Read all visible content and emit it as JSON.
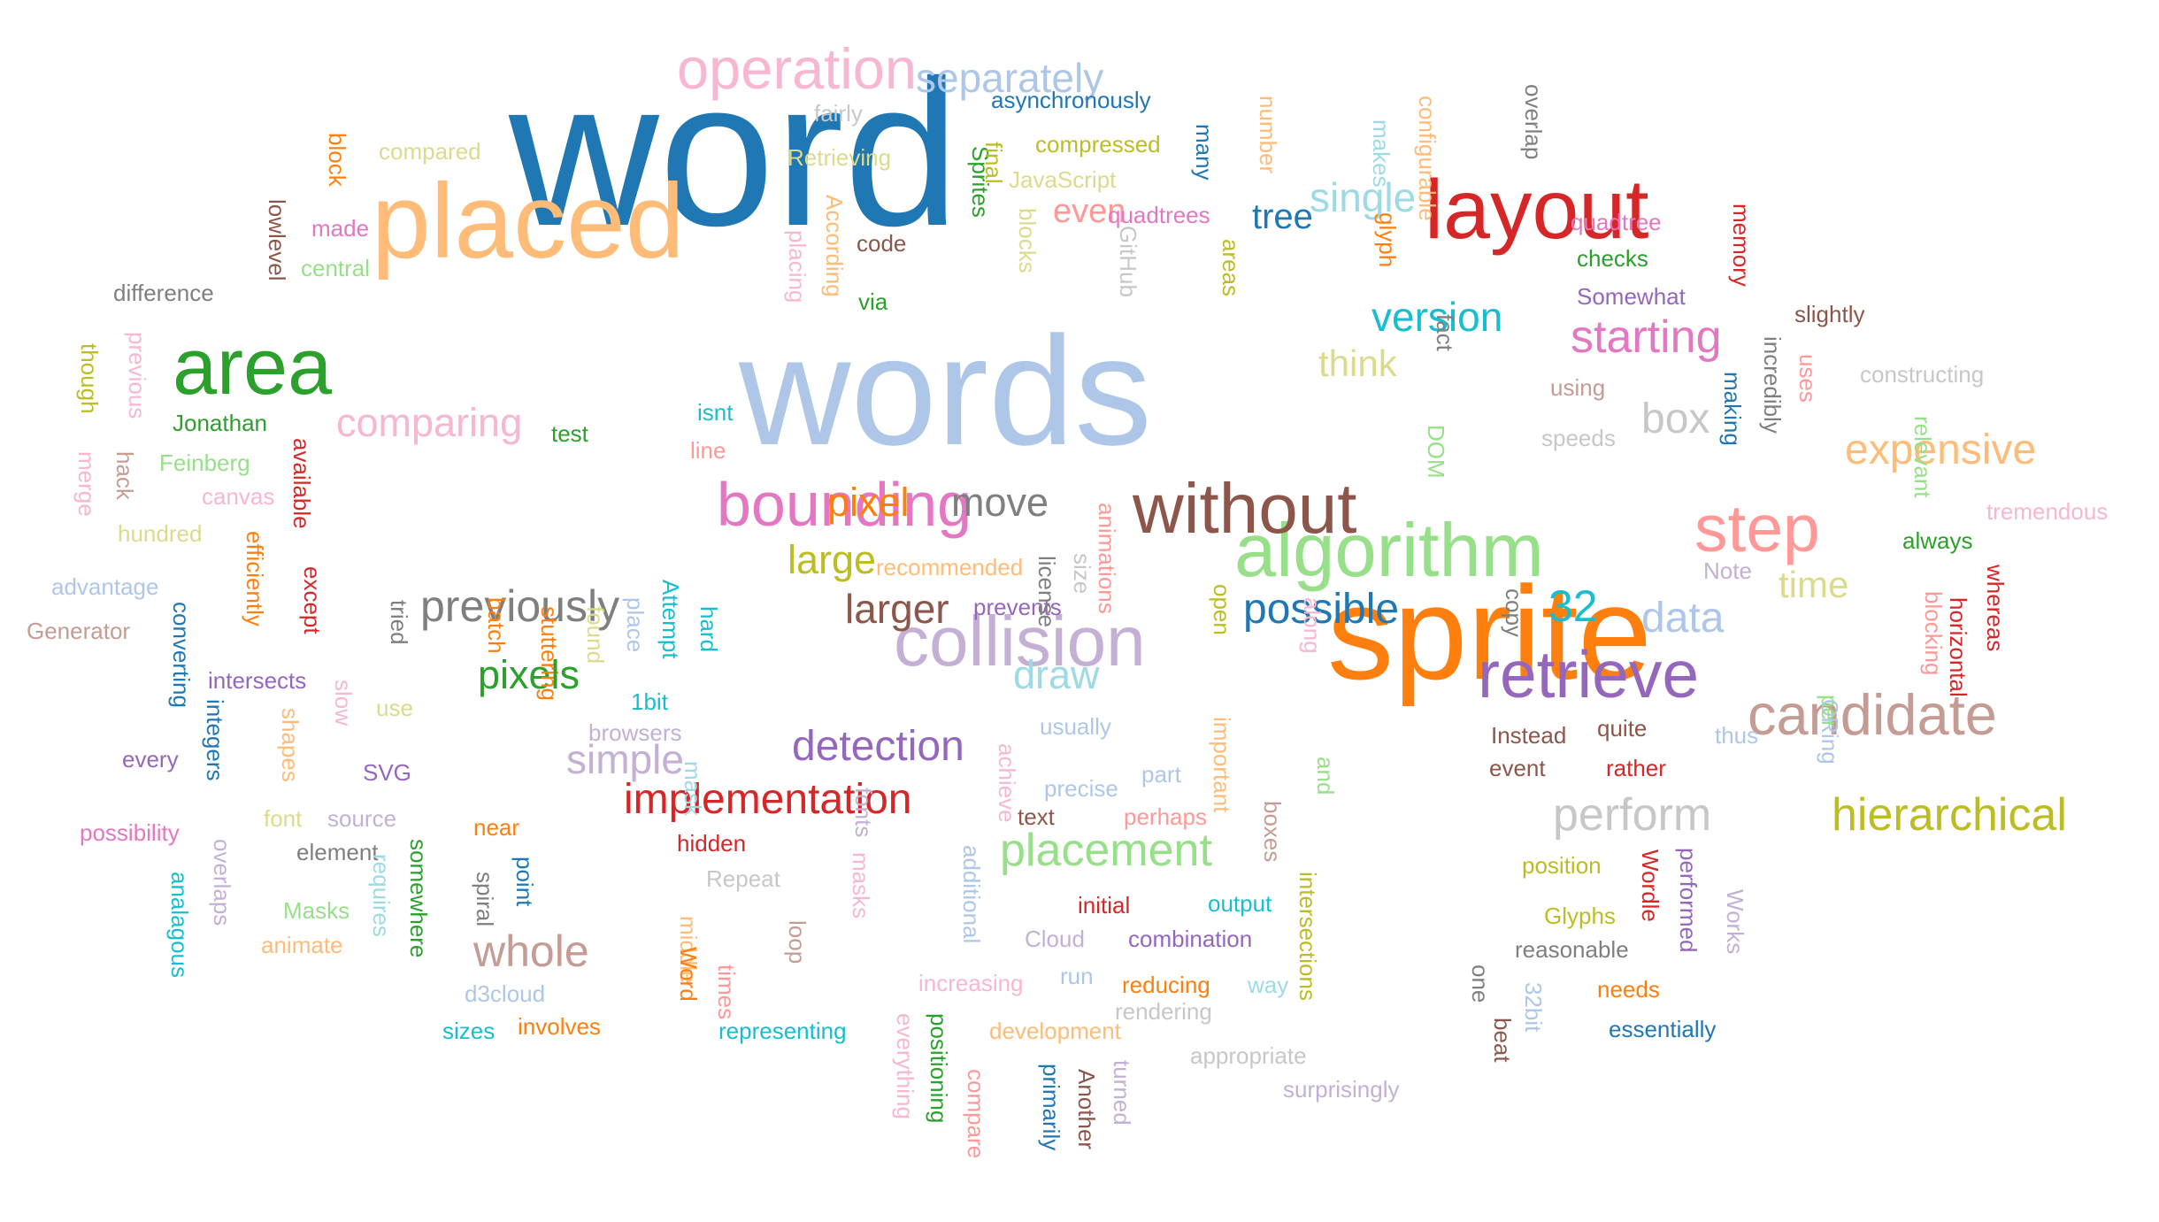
{
  "words": [
    {
      "text": "word",
      "color": "#1f77b4"
    },
    {
      "text": "words",
      "color": "#aec7e8"
    },
    {
      "text": "sprite",
      "color": "#ff7f0e"
    },
    {
      "text": "placed",
      "color": "#ffbb78"
    },
    {
      "text": "algorithm",
      "color": "#98df8a"
    },
    {
      "text": "area",
      "color": "#2ca02c"
    },
    {
      "text": "layout",
      "color": "#d62728"
    },
    {
      "text": "retrieve",
      "color": "#9467bd"
    },
    {
      "text": "candidate",
      "color": "#c49c94"
    },
    {
      "text": "step",
      "color": "#ff9896"
    },
    {
      "text": "without",
      "color": "#8c564b"
    },
    {
      "text": "operation",
      "color": "#f7b6d2"
    },
    {
      "text": "bounding",
      "color": "#e377c2"
    },
    {
      "text": "collision",
      "color": "#c5b0d5"
    },
    {
      "text": "separately",
      "color": "#aec7e8"
    },
    {
      "text": "implementation",
      "color": "#d62728"
    },
    {
      "text": "previously",
      "color": "#7f7f7f"
    },
    {
      "text": "comparing",
      "color": "#f7b6d2"
    },
    {
      "text": "hierarchical",
      "color": "#bcbd22"
    },
    {
      "text": "expensive",
      "color": "#ffbb78"
    },
    {
      "text": "placement",
      "color": "#98df8a"
    },
    {
      "text": "perform",
      "color": "#c7c7c7"
    },
    {
      "text": "starting",
      "color": "#e377c2"
    },
    {
      "text": "detection",
      "color": "#9467bd"
    },
    {
      "text": "possible",
      "color": "#1f77b4"
    },
    {
      "text": "larger",
      "color": "#8c564b"
    },
    {
      "text": "version",
      "color": "#17becf"
    },
    {
      "text": "single",
      "color": "#9edae5"
    },
    {
      "text": "simple",
      "color": "#c5b0d5"
    },
    {
      "text": "whole",
      "color": "#c49c94"
    },
    {
      "text": "pixels",
      "color": "#2ca02c"
    },
    {
      "text": "data",
      "color": "#aec7e8"
    },
    {
      "text": "move",
      "color": "#7f7f7f"
    },
    {
      "text": "pixel",
      "color": "#ff7f0e"
    },
    {
      "text": "think",
      "color": "#dbdb8d"
    },
    {
      "text": "time",
      "color": "#dbdb8d"
    },
    {
      "text": "draw",
      "color": "#9edae5"
    },
    {
      "text": "large",
      "color": "#bcbd22"
    },
    {
      "text": "box",
      "color": "#c7c7c7"
    },
    {
      "text": "tree",
      "color": "#1f77b4"
    },
    {
      "text": "even",
      "color": "#ff9896"
    },
    {
      "text": "32",
      "color": "#17becf"
    },
    {
      "text": "asynchronously",
      "color": "#1f77b4"
    },
    {
      "text": "fairly",
      "color": "#c7c7c7"
    },
    {
      "text": "compared",
      "color": "#dbdb8d"
    },
    {
      "text": "Retrieving",
      "color": "#dbdb8d"
    },
    {
      "text": "compressed",
      "color": "#bcbd22"
    },
    {
      "text": "JavaScript",
      "color": "#dbdb8d"
    },
    {
      "text": "quadtrees",
      "color": "#e377c2"
    },
    {
      "text": "code",
      "color": "#8c564b"
    },
    {
      "text": "via",
      "color": "#2ca02c"
    },
    {
      "text": "made",
      "color": "#e377c2"
    },
    {
      "text": "central",
      "color": "#98df8a"
    },
    {
      "text": "difference",
      "color": "#7f7f7f"
    },
    {
      "text": "Jonathan",
      "color": "#2ca02c"
    },
    {
      "text": "Feinberg",
      "color": "#98df8a"
    },
    {
      "text": "canvas",
      "color": "#f7b6d2"
    },
    {
      "text": "hundred",
      "color": "#dbdb8d"
    },
    {
      "text": "advantage",
      "color": "#aec7e8"
    },
    {
      "text": "Generator",
      "color": "#c49c94"
    },
    {
      "text": "intersects",
      "color": "#9467bd"
    },
    {
      "text": "every",
      "color": "#9467bd"
    },
    {
      "text": "SVG",
      "color": "#9467bd"
    },
    {
      "text": "font",
      "color": "#dbdb8d"
    },
    {
      "text": "source",
      "color": "#c5b0d5"
    },
    {
      "text": "possibility",
      "color": "#e377c2"
    },
    {
      "text": "element",
      "color": "#7f7f7f"
    },
    {
      "text": "near",
      "color": "#ff7f0e"
    },
    {
      "text": "Masks",
      "color": "#98df8a"
    },
    {
      "text": "animate",
      "color": "#ffbb78"
    },
    {
      "text": "d3cloud",
      "color": "#aec7e8"
    },
    {
      "text": "sizes",
      "color": "#17becf"
    },
    {
      "text": "involves",
      "color": "#ff7f0e"
    },
    {
      "text": "test",
      "color": "#2ca02c"
    },
    {
      "text": "isnt",
      "color": "#17becf"
    },
    {
      "text": "line",
      "color": "#ff9896"
    },
    {
      "text": "recommended",
      "color": "#ffbb78"
    },
    {
      "text": "prevents",
      "color": "#9467bd"
    },
    {
      "text": "usually",
      "color": "#aec7e8"
    },
    {
      "text": "precise",
      "color": "#aec7e8"
    },
    {
      "text": "part",
      "color": "#aec7e8"
    },
    {
      "text": "text",
      "color": "#8c564b"
    },
    {
      "text": "perhaps",
      "color": "#ff9896"
    },
    {
      "text": "1bit",
      "color": "#17becf"
    },
    {
      "text": "browsers",
      "color": "#c5b0d5"
    },
    {
      "text": "use",
      "color": "#dbdb8d"
    },
    {
      "text": "hidden",
      "color": "#d62728"
    },
    {
      "text": "Repeat",
      "color": "#c7c7c7"
    },
    {
      "text": "initial",
      "color": "#d62728"
    },
    {
      "text": "output",
      "color": "#17becf"
    },
    {
      "text": "Cloud",
      "color": "#c5b0d5"
    },
    {
      "text": "combination",
      "color": "#9467bd"
    },
    {
      "text": "run",
      "color": "#aec7e8"
    },
    {
      "text": "reducing",
      "color": "#ff7f0e"
    },
    {
      "text": "increasing",
      "color": "#f7b6d2"
    },
    {
      "text": "rendering",
      "color": "#c7c7c7"
    },
    {
      "text": "way",
      "color": "#9edae5"
    },
    {
      "text": "representing",
      "color": "#17becf"
    },
    {
      "text": "development",
      "color": "#ffbb78"
    },
    {
      "text": "appropriate",
      "color": "#c7c7c7"
    },
    {
      "text": "surprisingly",
      "color": "#c5b0d5"
    },
    {
      "text": "quadtree",
      "color": "#e377c2"
    },
    {
      "text": "checks",
      "color": "#2ca02c"
    },
    {
      "text": "Somewhat",
      "color": "#9467bd"
    },
    {
      "text": "slightly",
      "color": "#8c564b"
    },
    {
      "text": "using",
      "color": "#c49c94"
    },
    {
      "text": "speeds",
      "color": "#c7c7c7"
    },
    {
      "text": "constructing",
      "color": "#c7c7c7"
    },
    {
      "text": "tremendous",
      "color": "#f7b6d2"
    },
    {
      "text": "always",
      "color": "#2ca02c"
    },
    {
      "text": "Note",
      "color": "#c5b0d5"
    },
    {
      "text": "Instead",
      "color": "#8c564b"
    },
    {
      "text": "quite",
      "color": "#8c564b"
    },
    {
      "text": "thus",
      "color": "#aec7e8"
    },
    {
      "text": "event",
      "color": "#8c564b"
    },
    {
      "text": "rather",
      "color": "#d62728"
    },
    {
      "text": "position",
      "color": "#bcbd22"
    },
    {
      "text": "Glyphs",
      "color": "#bcbd22"
    },
    {
      "text": "reasonable",
      "color": "#7f7f7f"
    },
    {
      "text": "needs",
      "color": "#ff7f0e"
    },
    {
      "text": "essentially",
      "color": "#1f77b4"
    },
    {
      "text": "block",
      "color": "#ff7f0e",
      "rotate": true
    },
    {
      "text": "lowlevel",
      "color": "#8c564b",
      "rotate": true
    },
    {
      "text": "though",
      "color": "#bcbd22",
      "rotate": true
    },
    {
      "text": "previous",
      "color": "#f7b6d2",
      "rotate": true
    },
    {
      "text": "merge",
      "color": "#f7b6d2",
      "rotate": true
    },
    {
      "text": "hack",
      "color": "#c49c94",
      "rotate": true
    },
    {
      "text": "available",
      "color": "#d62728",
      "rotate": true
    },
    {
      "text": "efficiently",
      "color": "#ff7f0e",
      "rotate": true
    },
    {
      "text": "except",
      "color": "#d62728",
      "rotate": true
    },
    {
      "text": "converting",
      "color": "#1f77b4",
      "rotate": true
    },
    {
      "text": "integers",
      "color": "#1f77b4",
      "rotate": true
    },
    {
      "text": "shapes",
      "color": "#ffbb78",
      "rotate": true
    },
    {
      "text": "slow",
      "color": "#f7b6d2",
      "rotate": true
    },
    {
      "text": "tried",
      "color": "#7f7f7f",
      "rotate": true
    },
    {
      "text": "batch",
      "color": "#ff7f0e",
      "rotate": true
    },
    {
      "text": "stuttering",
      "color": "#ff7f0e",
      "rotate": true
    },
    {
      "text": "found",
      "color": "#dbdb8d",
      "rotate": true
    },
    {
      "text": "place",
      "color": "#aec7e8",
      "rotate": true
    },
    {
      "text": "Attempt",
      "color": "#17becf",
      "rotate": true
    },
    {
      "text": "hard",
      "color": "#17becf",
      "rotate": true
    },
    {
      "text": "mask",
      "color": "#9edae5",
      "rotate": true
    },
    {
      "text": "fonts",
      "color": "#c5b0d5",
      "rotate": true
    },
    {
      "text": "masks",
      "color": "#f7b6d2",
      "rotate": true
    },
    {
      "text": "loop",
      "color": "#c49c94",
      "rotate": true
    },
    {
      "text": "middle",
      "color": "#ffbb78",
      "rotate": true
    },
    {
      "text": "Word",
      "color": "#ff7f0e",
      "rotate": true
    },
    {
      "text": "times",
      "color": "#ff9896",
      "rotate": true
    },
    {
      "text": "overlaps",
      "color": "#c5b0d5",
      "rotate": true
    },
    {
      "text": "analagous",
      "color": "#17becf",
      "rotate": true
    },
    {
      "text": "requires",
      "color": "#9edae5",
      "rotate": true
    },
    {
      "text": "somewhere",
      "color": "#2ca02c",
      "rotate": true
    },
    {
      "text": "spiral",
      "color": "#7f7f7f",
      "rotate": true
    },
    {
      "text": "point",
      "color": "#1f77b4",
      "rotate": true
    },
    {
      "text": "According",
      "color": "#ffbb78",
      "rotate": true
    },
    {
      "text": "placing",
      "color": "#f7b6d2",
      "rotate": true
    },
    {
      "text": "Sprites",
      "color": "#2ca02c",
      "rotate": true
    },
    {
      "text": "final",
      "color": "#bcbd22",
      "rotate": true
    },
    {
      "text": "blocks",
      "color": "#dbdb8d",
      "rotate": true
    },
    {
      "text": "GitHub",
      "color": "#c7c7c7",
      "rotate": true
    },
    {
      "text": "many",
      "color": "#1f77b4",
      "rotate": true
    },
    {
      "text": "number",
      "color": "#ffbb78",
      "rotate": true
    },
    {
      "text": "areas",
      "color": "#bcbd22",
      "rotate": true
    },
    {
      "text": "makes",
      "color": "#9edae5",
      "rotate": true
    },
    {
      "text": "glyph",
      "color": "#ff7f0e",
      "rotate": true
    },
    {
      "text": "configurable",
      "color": "#ffbb78",
      "rotate": true
    },
    {
      "text": "fact",
      "color": "#7f7f7f",
      "rotate": true
    },
    {
      "text": "DOM",
      "color": "#98df8a",
      "rotate": true
    },
    {
      "text": "overlap",
      "color": "#7f7f7f",
      "rotate": true
    },
    {
      "text": "memory",
      "color": "#d62728",
      "rotate": true
    },
    {
      "text": "incredibly",
      "color": "#7f7f7f",
      "rotate": true
    },
    {
      "text": "uses",
      "color": "#ff9896",
      "rotate": true
    },
    {
      "text": "making",
      "color": "#1f77b4",
      "rotate": true
    },
    {
      "text": "relevant",
      "color": "#98df8a",
      "rotate": true
    },
    {
      "text": "whereas",
      "color": "#d62728",
      "rotate": true
    },
    {
      "text": "blocking",
      "color": "#ff9896",
      "rotate": true
    },
    {
      "text": "horizontal",
      "color": "#d62728",
      "rotate": true
    },
    {
      "text": "ORing",
      "color": "#aec7e8",
      "rotate": true
    },
    {
      "text": "per",
      "color": "#98df8a",
      "rotate": true
    },
    {
      "text": "animations",
      "color": "#ff9896",
      "rotate": true
    },
    {
      "text": "size",
      "color": "#c7c7c7",
      "rotate": true
    },
    {
      "text": "open",
      "color": "#bcbd22",
      "rotate": true
    },
    {
      "text": "important",
      "color": "#ffbb78",
      "rotate": true
    },
    {
      "text": "license",
      "color": "#7f7f7f",
      "rotate": true
    },
    {
      "text": "along",
      "color": "#f7b6d2",
      "rotate": true
    },
    {
      "text": "and",
      "color": "#98df8a",
      "rotate": true
    },
    {
      "text": "copy",
      "color": "#7f7f7f",
      "rotate": true
    },
    {
      "text": "achieve",
      "color": "#f7b6d2",
      "rotate": true
    },
    {
      "text": "boxes",
      "color": "#c49c94",
      "rotate": true
    },
    {
      "text": "intersections",
      "color": "#bcbd22",
      "rotate": true
    },
    {
      "text": "additional",
      "color": "#aec7e8",
      "rotate": true
    },
    {
      "text": "positioning",
      "color": "#2ca02c",
      "rotate": true
    },
    {
      "text": "everything",
      "color": "#f7b6d2",
      "rotate": true
    },
    {
      "text": "compare",
      "color": "#ff9896",
      "rotate": true
    },
    {
      "text": "primarily",
      "color": "#1f77b4",
      "rotate": true
    },
    {
      "text": "Another",
      "color": "#8c564b",
      "rotate": true
    },
    {
      "text": "turned",
      "color": "#c5b0d5",
      "rotate": true
    },
    {
      "text": "Wordle",
      "color": "#d62728",
      "rotate": true
    },
    {
      "text": "performed",
      "color": "#9467bd",
      "rotate": true
    },
    {
      "text": "Works",
      "color": "#c5b0d5",
      "rotate": true
    },
    {
      "text": "one",
      "color": "#7f7f7f",
      "rotate": true
    },
    {
      "text": "beat",
      "color": "#8c564b",
      "rotate": true
    },
    {
      "text": "32bit",
      "color": "#aec7e8",
      "rotate": true
    }
  ]
}
